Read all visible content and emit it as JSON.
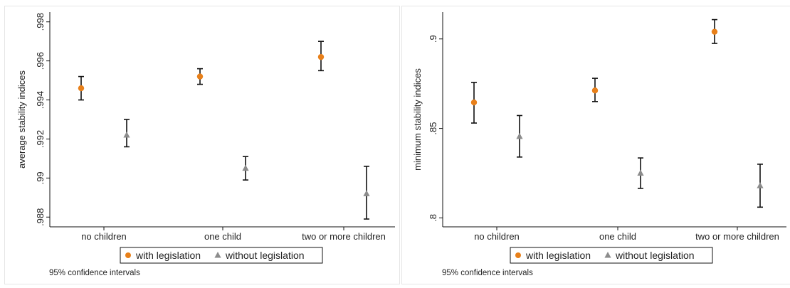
{
  "colors": {
    "with": "#e8801a",
    "without": "#8c8c8c",
    "error_bar": "#111111"
  },
  "chart_data": [
    {
      "type": "scatter",
      "ylabel": "average stability indices",
      "categories": [
        "no children",
        "one child",
        "two or more children"
      ],
      "ylim": [
        0.9875,
        0.9985
      ],
      "yticks": [
        {
          "value": 0.988,
          "label": ".988"
        },
        {
          "value": 0.99,
          "label": ".99"
        },
        {
          "value": 0.992,
          "label": ".992"
        },
        {
          "value": 0.994,
          "label": ".994"
        },
        {
          "value": 0.996,
          "label": ".996"
        },
        {
          "value": 0.998,
          "label": ".998"
        }
      ],
      "series": [
        {
          "name": "with legislation",
          "marker": "circle",
          "values": [
            0.9946,
            0.9952,
            0.9962
          ],
          "ci_low": [
            0.994,
            0.9948,
            0.9955
          ],
          "ci_high": [
            0.9952,
            0.9956,
            0.997
          ]
        },
        {
          "name": "without legislation",
          "marker": "triangle",
          "values": [
            0.9922,
            0.9905,
            0.9892
          ],
          "ci_low": [
            0.9916,
            0.9899,
            0.9879
          ],
          "ci_high": [
            0.993,
            0.9911,
            0.9906
          ]
        }
      ],
      "note": "95% confidence intervals"
    },
    {
      "type": "scatter",
      "ylabel": "minimum stability indices",
      "categories": [
        "no children",
        "one child",
        "two or more children"
      ],
      "ylim": [
        0.795,
        0.915
      ],
      "yticks": [
        {
          "value": 0.8,
          "label": ".8"
        },
        {
          "value": 0.85,
          "label": ".85"
        },
        {
          "value": 0.9,
          "label": ".9"
        }
      ],
      "series": [
        {
          "name": "with legislation",
          "marker": "circle",
          "values": [
            0.8645,
            0.8712,
            0.904
          ],
          "ci_low": [
            0.853,
            0.865,
            0.8975
          ],
          "ci_high": [
            0.8757,
            0.878,
            0.9108
          ]
        },
        {
          "name": "without legislation",
          "marker": "triangle",
          "values": [
            0.8455,
            0.825,
            0.818
          ],
          "ci_low": [
            0.834,
            0.8165,
            0.806
          ],
          "ci_high": [
            0.8572,
            0.8335,
            0.83
          ]
        }
      ],
      "note": "95% confidence intervals"
    }
  ]
}
